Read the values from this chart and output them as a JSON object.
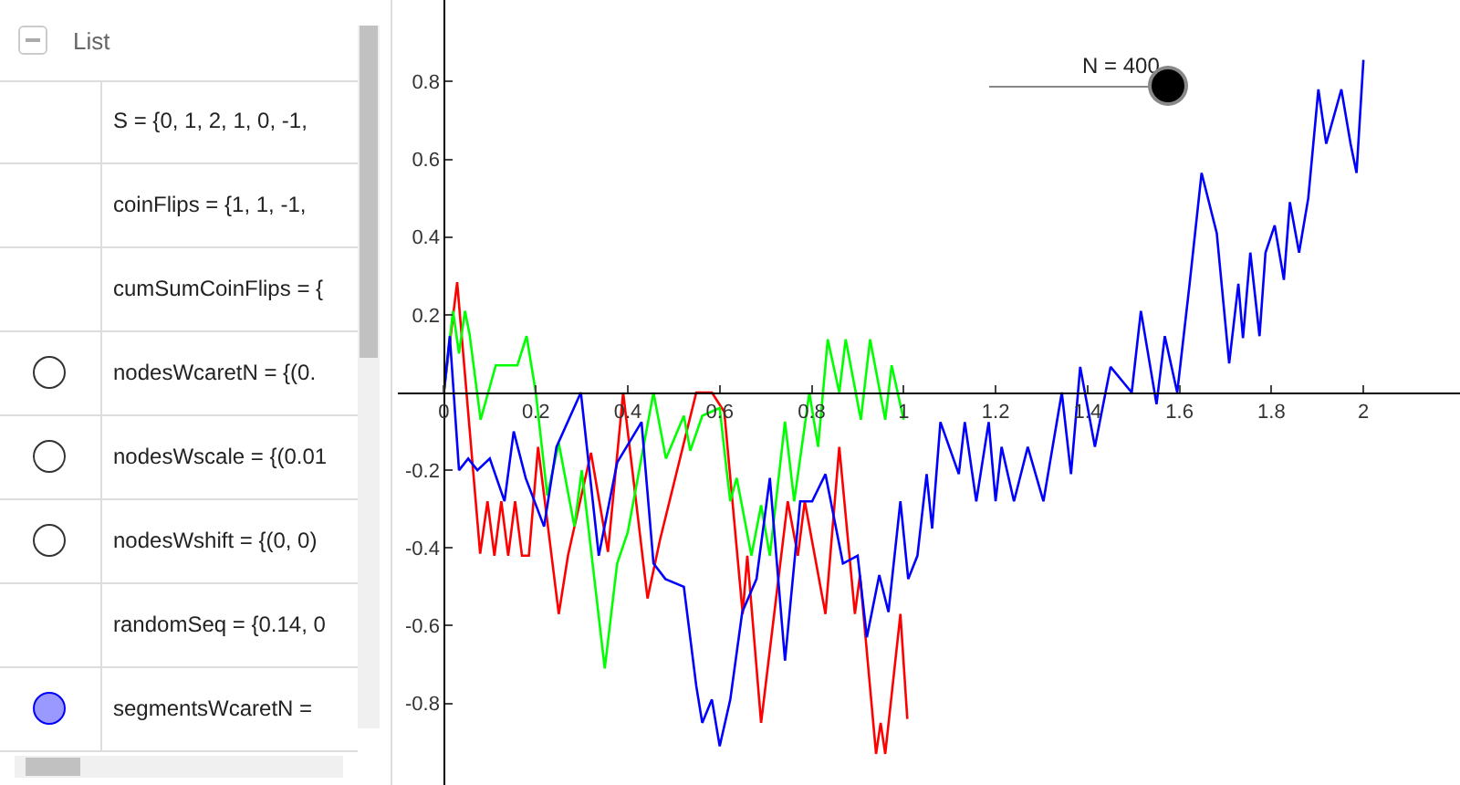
{
  "chart_data": [
    {
      "type": "other",
      "title": "List",
      "annotations": [
        "S = {0, 1, 2, 1, 0, -1,",
        "coinFlips = {1, 1, -1,",
        "cumSumCoinFlips = {",
        "nodesWcaretN = {(0.",
        "nodesWscale = {(0.01",
        "nodesWshift = {(0, 0)",
        "randomSeq = {0.14, 0",
        "segmentsWcaretN ="
      ]
    },
    {
      "type": "line",
      "xlim": [
        -0.1,
        2.21
      ],
      "ylim": [
        -1.01,
        1.01
      ],
      "xticks": [
        0,
        0.2,
        0.4,
        0.6,
        0.8,
        1,
        1.2,
        1.4,
        1.6,
        1.8,
        2
      ],
      "yticks": [
        -0.8,
        -0.6,
        -0.4,
        -0.2,
        0.2,
        0.4,
        0.6,
        0.8
      ],
      "grid": false,
      "marker": "none",
      "line_style": "solid",
      "annotations": [
        "N = 400"
      ],
      "series": [
        {
          "color": "#ff0000",
          "x": [
            0,
            0.029,
            0.079,
            0.095,
            0.11,
            0.125,
            0.14,
            0.155,
            0.17,
            0.185,
            0.205,
            0.25,
            0.27,
            0.32,
            0.357,
            0.39,
            0.443,
            0.47,
            0.549,
            0.583,
            0.61,
            0.65,
            0.66,
            0.69,
            0.748,
            0.77,
            0.785,
            0.83,
            0.86,
            0.894,
            0.905,
            0.94,
            0.95,
            0.96,
            0.993,
            1.008
          ],
          "values": [
            0,
            0.284,
            -0.415,
            -0.28,
            -0.42,
            -0.28,
            -0.42,
            -0.28,
            -0.42,
            -0.42,
            -0.14,
            -0.57,
            -0.42,
            -0.155,
            -0.41,
            0,
            -0.53,
            -0.38,
            0,
            0,
            -0.05,
            -0.57,
            -0.42,
            -0.85,
            -0.28,
            -0.42,
            -0.28,
            -0.57,
            -0.14,
            -0.57,
            -0.47,
            -0.93,
            -0.85,
            -0.93,
            -0.57,
            -0.84
          ]
        },
        {
          "color": "#00ff00",
          "x": [
            0,
            0.02,
            0.033,
            0.046,
            0.056,
            0.08,
            0.113,
            0.13,
            0.16,
            0.18,
            0.2,
            0.225,
            0.25,
            0.284,
            0.3,
            0.35,
            0.377,
            0.4,
            0.456,
            0.483,
            0.522,
            0.536,
            0.562,
            0.6,
            0.615,
            0.623,
            0.637,
            0.669,
            0.69,
            0.709,
            0.742,
            0.762,
            0.795,
            0.814,
            0.835,
            0.86,
            0.874,
            0.907,
            0.927,
            0.96,
            0.974,
            1.0
          ],
          "values": [
            0,
            0.21,
            0.1,
            0.21,
            0.15,
            -0.07,
            0.07,
            0.07,
            0.07,
            0.145,
            0,
            -0.265,
            -0.13,
            -0.345,
            -0.2,
            -0.71,
            -0.44,
            -0.36,
            0,
            -0.17,
            -0.06,
            -0.15,
            -0.06,
            -0.04,
            -0.2,
            -0.28,
            -0.22,
            -0.42,
            -0.29,
            -0.42,
            -0.075,
            -0.28,
            0,
            -0.14,
            0.137,
            0,
            0.137,
            -0.07,
            0.137,
            -0.07,
            0.07,
            -0.07
          ]
        },
        {
          "color": "#0000ff",
          "x": [
            0,
            0.013,
            0.033,
            0.053,
            0.073,
            0.1,
            0.132,
            0.152,
            0.178,
            0.218,
            0.245,
            0.298,
            0.337,
            0.377,
            0.43,
            0.456,
            0.482,
            0.522,
            0.549,
            0.562,
            0.583,
            0.6,
            0.623,
            0.649,
            0.68,
            0.709,
            0.742,
            0.775,
            0.801,
            0.83,
            0.868,
            0.9,
            0.92,
            0.947,
            0.967,
            0.993,
            1.01,
            1.03,
            1.05,
            1.062,
            1.08,
            1.12,
            1.133,
            1.158,
            1.185,
            1.2,
            1.213,
            1.24,
            1.27,
            1.304,
            1.344,
            1.364,
            1.384,
            1.416,
            1.45,
            1.496,
            1.516,
            1.55,
            1.568,
            1.595,
            1.622,
            1.648,
            1.681,
            1.708,
            1.728,
            1.738,
            1.754,
            1.774,
            1.787,
            1.807,
            1.827,
            1.84,
            1.86,
            1.88,
            1.902,
            1.919,
            1.952,
            1.972,
            1.985,
            2.0
          ],
          "values": [
            0,
            0.145,
            -0.2,
            -0.17,
            -0.2,
            -0.17,
            -0.28,
            -0.1,
            -0.22,
            -0.345,
            -0.14,
            0,
            -0.42,
            -0.18,
            -0.076,
            -0.44,
            -0.48,
            -0.5,
            -0.755,
            -0.85,
            -0.79,
            -0.91,
            -0.79,
            -0.565,
            -0.48,
            -0.22,
            -0.69,
            -0.28,
            -0.28,
            -0.21,
            -0.44,
            -0.42,
            -0.63,
            -0.47,
            -0.565,
            -0.28,
            -0.48,
            -0.42,
            -0.21,
            -0.35,
            -0.076,
            -0.21,
            -0.076,
            -0.28,
            -0.076,
            -0.28,
            -0.14,
            -0.28,
            -0.14,
            -0.28,
            0,
            -0.21,
            0.066,
            -0.14,
            0.066,
            0,
            0.21,
            -0.03,
            0.145,
            0,
            0.28,
            0.565,
            0.41,
            0.075,
            0.28,
            0.14,
            0.36,
            0.145,
            0.36,
            0.43,
            0.29,
            0.49,
            0.36,
            0.5,
            0.78,
            0.64,
            0.78,
            0.64,
            0.565,
            0.856
          ]
        }
      ]
    }
  ]
}
